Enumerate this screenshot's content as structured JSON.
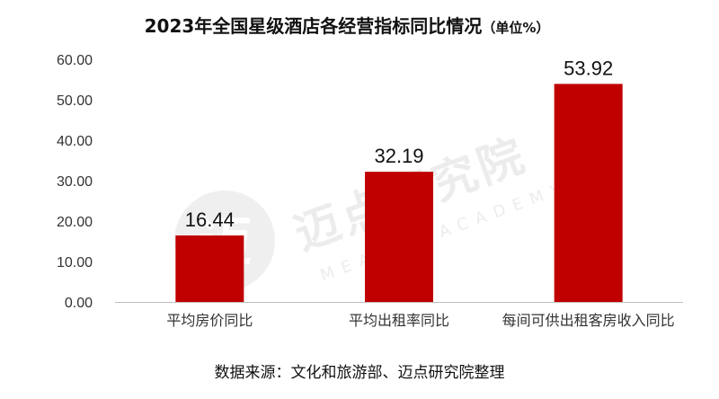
{
  "colors": {
    "bar": "#C00000",
    "axis": "#BFBFBF",
    "text": "#333333",
    "title": "#111111"
  },
  "chart_data": {
    "type": "bar",
    "title": "2023年全国星级酒店各经营指标同比情况",
    "subtitle": "（单位%）",
    "categories": [
      "平均房价同比",
      "平均出租率同比",
      "每间可供出租客房收入同比"
    ],
    "values": [
      16.44,
      32.19,
      53.92
    ],
    "value_labels": [
      "16.44",
      "32.19",
      "53.92"
    ],
    "yticks": [
      "0.00",
      "10.00",
      "20.00",
      "30.00",
      "40.00",
      "50.00",
      "60.00"
    ],
    "ylim": [
      0,
      60
    ],
    "grid": false,
    "legend": "none",
    "xlabel": "",
    "ylabel": ""
  },
  "source": "数据来源：文化和旅游部、迈点研究院整理",
  "watermark": {
    "name_cn": "迈点研究院",
    "name_en": "MEADIN ACADEMY"
  }
}
